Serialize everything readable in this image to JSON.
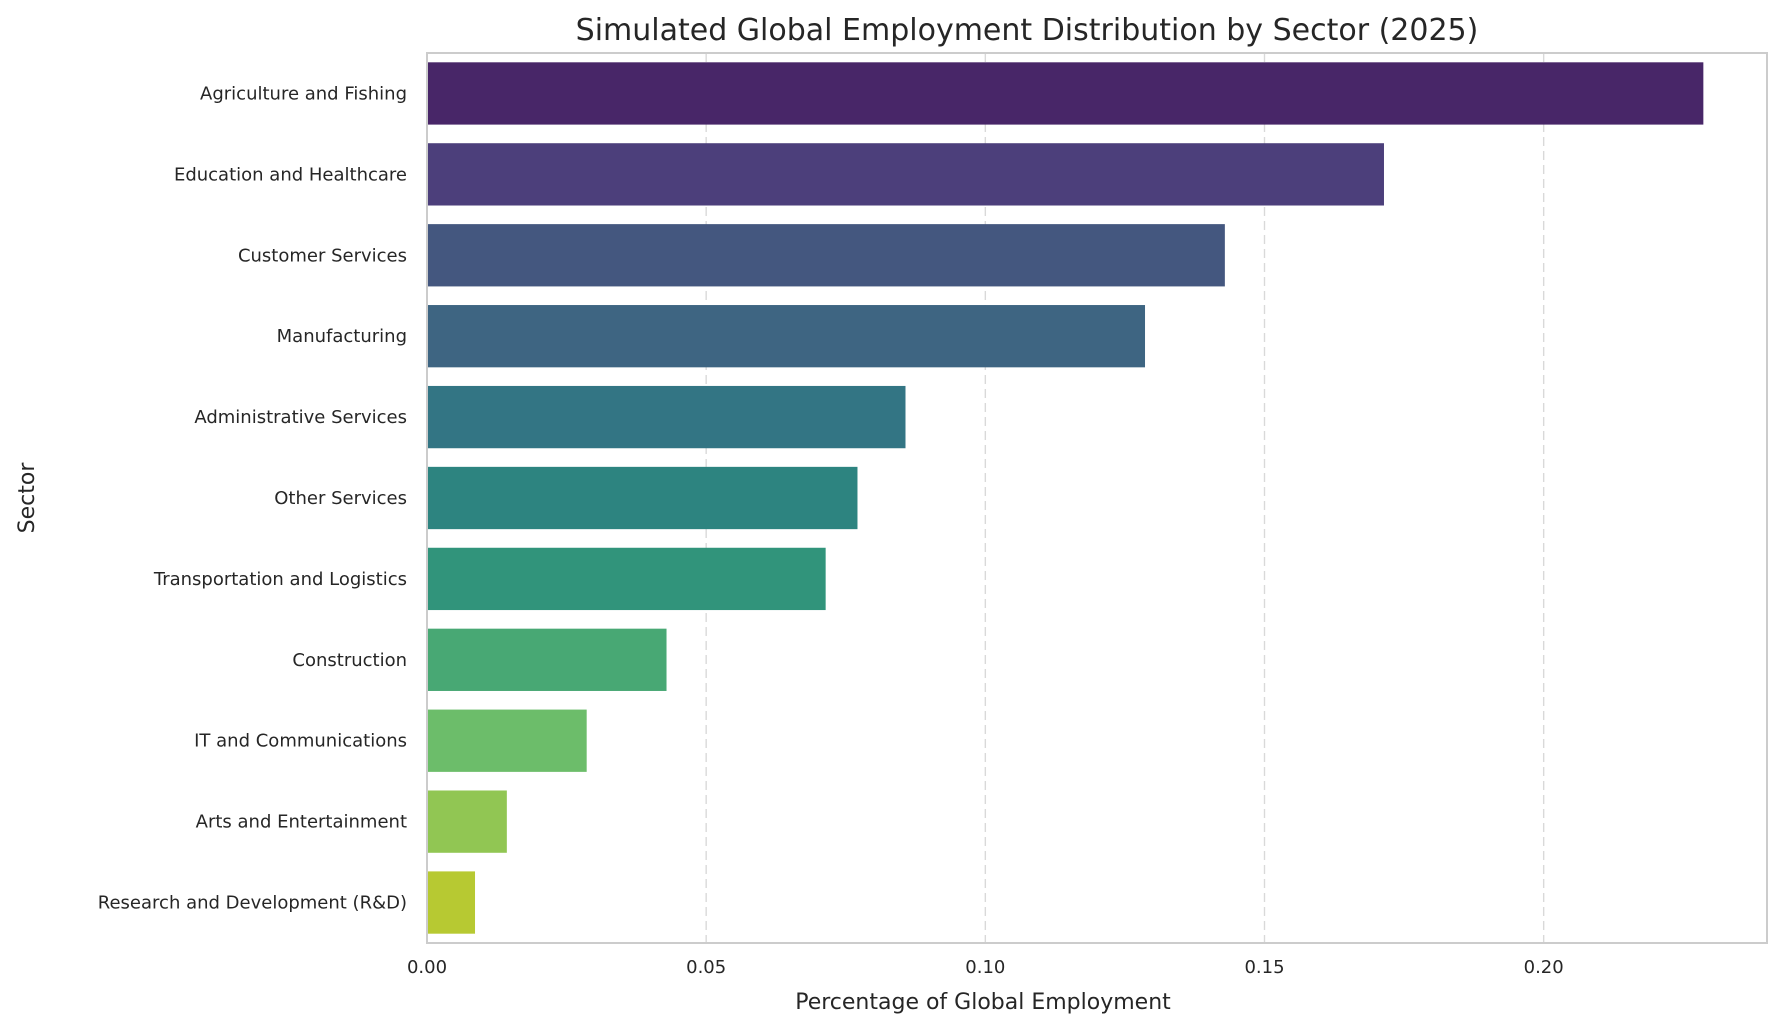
{
  "chart_data": {
    "type": "bar",
    "orientation": "horizontal",
    "title": "Simulated Global Employment Distribution by Sector (2025)",
    "xlabel": "Percentage of Global Employment",
    "ylabel": "Sector",
    "categories": [
      "Agriculture and Fishing",
      "Education and Healthcare",
      "Customer Services",
      "Manufacturing",
      "Administrative Services",
      "Other Services",
      "Transportation and Logistics",
      "Construction",
      "IT and Communications",
      "Arts and Entertainment",
      "Research and Development (R&D)"
    ],
    "values": [
      0.2286,
      0.1714,
      0.1429,
      0.1286,
      0.0857,
      0.0771,
      0.0714,
      0.0429,
      0.0286,
      0.0143,
      0.0086
    ],
    "colors": [
      "#482668",
      "#4c3f7b",
      "#44577f",
      "#3e6582",
      "#337584",
      "#2d8480",
      "#31947b",
      "#48a874",
      "#6cbd6a",
      "#91c653",
      "#b7c932"
    ],
    "xticks": [
      "0.00",
      "0.05",
      "0.10",
      "0.15",
      "0.20"
    ],
    "xtick_values": [
      0,
      0.05,
      0.1,
      0.15,
      0.2
    ],
    "xlim": [
      0,
      0.24
    ],
    "grid": "vertical dashed",
    "legend": "none"
  }
}
